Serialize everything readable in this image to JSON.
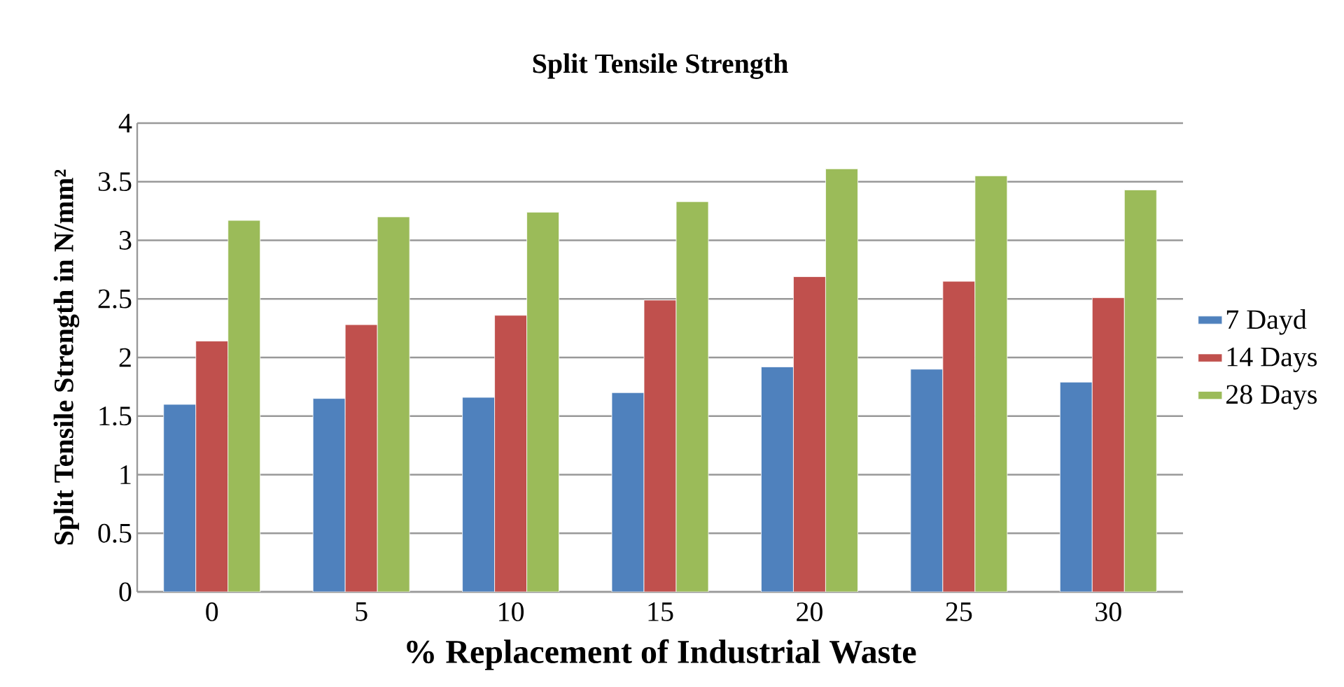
{
  "chart_data": {
    "type": "bar",
    "title": "Split Tensile Strength",
    "xlabel": "% Replacement of Industrial Waste",
    "ylabel": "Split Tensile Strength in N/mm²",
    "categories": [
      "0",
      "5",
      "10",
      "15",
      "20",
      "25",
      "30"
    ],
    "series": [
      {
        "name": "7 Dayd",
        "color": "#4f81bd",
        "values": [
          1.6,
          1.65,
          1.66,
          1.7,
          1.92,
          1.9,
          1.79
        ]
      },
      {
        "name": "14 Days",
        "color": "#c0504d",
        "values": [
          2.14,
          2.28,
          2.36,
          2.49,
          2.69,
          2.65,
          2.51
        ]
      },
      {
        "name": "28 Days",
        "color": "#9bbb59",
        "values": [
          3.17,
          3.2,
          3.24,
          3.33,
          3.61,
          3.55,
          3.43
        ]
      }
    ],
    "ylim": [
      0,
      4
    ],
    "yticks": [
      0,
      0.5,
      1,
      1.5,
      2,
      2.5,
      3,
      3.5,
      4
    ],
    "grid": "y",
    "legend": "right"
  }
}
